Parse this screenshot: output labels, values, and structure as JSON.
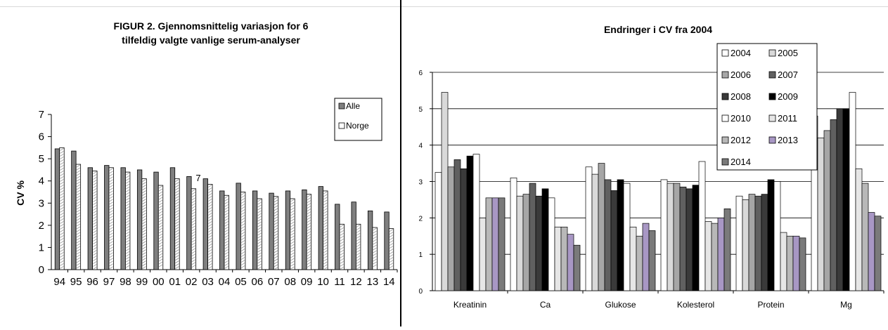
{
  "chart_data": [
    {
      "type": "bar",
      "title": "FIGUR 2.  Gjennomsnittelig variasjon for 6",
      "subtitle": "tilfeldig valgte vanlige serum-analyser",
      "ylabel": "CV %",
      "ylim": [
        0,
        7
      ],
      "yticks": [
        "0",
        "1",
        "2",
        "3",
        "4",
        "5",
        "6",
        "7"
      ],
      "categories": [
        "94",
        "95",
        "96",
        "97",
        "98",
        "99",
        "00",
        "01",
        "02",
        "03",
        "04",
        "05",
        "06",
        "07",
        "08",
        "09",
        "10",
        "11",
        "12",
        "13",
        "14"
      ],
      "series": [
        {
          "name": "Alle",
          "color": "#7f7f7f",
          "values": [
            5.45,
            5.35,
            4.6,
            4.7,
            4.6,
            4.5,
            4.4,
            4.6,
            4.2,
            4.1,
            3.55,
            3.9,
            3.55,
            3.45,
            3.55,
            3.6,
            3.75,
            2.95,
            3.05,
            2.65,
            2.6
          ]
        },
        {
          "name": "Norge",
          "color": "#ffffff",
          "values": [
            5.5,
            4.75,
            4.45,
            4.6,
            4.4,
            4.1,
            3.8,
            4.1,
            3.65,
            3.85,
            3.35,
            3.5,
            3.2,
            3.3,
            3.2,
            3.4,
            3.55,
            2.05,
            2.05,
            1.9,
            1.85
          ]
        }
      ],
      "annotation": "7",
      "legend": "right",
      "grid": false
    },
    {
      "type": "bar",
      "title": "Endringer i CV fra 2004",
      "ylim": [
        0,
        6
      ],
      "yticks": [
        "0",
        "1",
        "2",
        "3",
        "4",
        "5",
        "6"
      ],
      "categories": [
        "Kreatinin",
        "Ca",
        "Glukose",
        "Kolesterol",
        "Protein",
        "Mg"
      ],
      "series": [
        {
          "name": "2004",
          "color": "#ffffff",
          "values": [
            3.25,
            3.1,
            3.4,
            3.05,
            2.6,
            4.8
          ]
        },
        {
          "name": "2005",
          "color": "#d9d9d9",
          "values": [
            5.45,
            2.6,
            3.2,
            2.95,
            2.5,
            4.2
          ]
        },
        {
          "name": "2006",
          "color": "#a6a6a6",
          "values": [
            3.4,
            2.65,
            3.5,
            2.95,
            2.65,
            4.4
          ]
        },
        {
          "name": "2007",
          "color": "#606060",
          "values": [
            3.6,
            2.95,
            3.05,
            2.85,
            2.6,
            4.7
          ]
        },
        {
          "name": "2008",
          "color": "#3a3a3a",
          "values": [
            3.35,
            2.6,
            2.75,
            2.8,
            2.65,
            5.0
          ]
        },
        {
          "name": "2009",
          "color": "#000000",
          "values": [
            3.7,
            2.8,
            3.05,
            2.9,
            3.05,
            5.0
          ]
        },
        {
          "name": "2010",
          "color": "#ffffff",
          "values": [
            3.75,
            2.55,
            2.95,
            3.55,
            3.0,
            5.45
          ]
        },
        {
          "name": "2011",
          "color": "#e6e6e6",
          "values": [
            2.0,
            1.75,
            1.75,
            1.9,
            1.6,
            3.35
          ]
        },
        {
          "name": "2012",
          "color": "#b8b8b8",
          "values": [
            2.55,
            1.75,
            1.5,
            1.85,
            1.5,
            2.95
          ]
        },
        {
          "name": "2013",
          "color": "#a897c4",
          "values": [
            2.55,
            1.55,
            1.85,
            2.0,
            1.5,
            2.15
          ]
        },
        {
          "name": "2014",
          "color": "#7a7a7a",
          "values": [
            2.55,
            1.25,
            1.65,
            2.25,
            1.45,
            2.05
          ]
        }
      ],
      "legend": "top-right",
      "grid": true
    }
  ]
}
